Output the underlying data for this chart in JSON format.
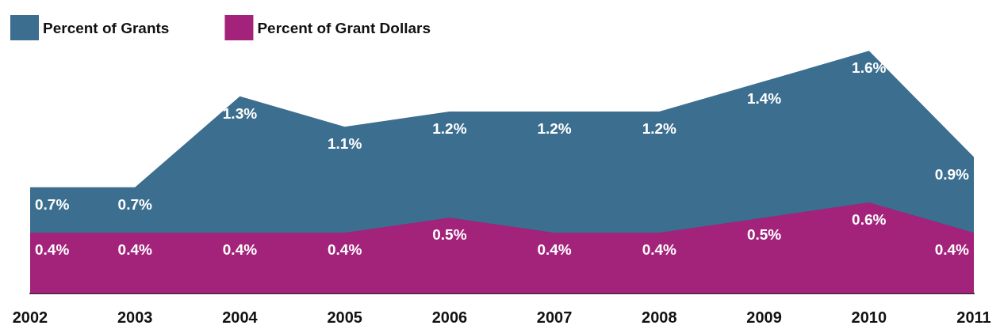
{
  "chart_data": {
    "type": "area",
    "categories": [
      "2002",
      "2003",
      "2004",
      "2005",
      "2006",
      "2007",
      "2008",
      "2009",
      "2010",
      "2011"
    ],
    "series": [
      {
        "name": "Percent of Grants",
        "color": "#3b6e8f",
        "values": [
          0.7,
          0.7,
          1.3,
          1.1,
          1.2,
          1.2,
          1.2,
          1.4,
          1.6,
          0.9
        ],
        "value_labels": [
          "0.7%",
          "0.7%",
          "1.3%",
          "1.1%",
          "1.2%",
          "1.2%",
          "1.2%",
          "1.4%",
          "1.6%",
          "0.9%"
        ]
      },
      {
        "name": "Percent of Grant Dollars",
        "color": "#a3237b",
        "values": [
          0.4,
          0.4,
          0.4,
          0.4,
          0.5,
          0.4,
          0.4,
          0.5,
          0.6,
          0.4
        ],
        "value_labels": [
          "0.4%",
          "0.4%",
          "0.4%",
          "0.4%",
          "0.5%",
          "0.4%",
          "0.4%",
          "0.5%",
          "0.6%",
          "0.4%"
        ]
      }
    ],
    "legend": "top left",
    "grid": false
  }
}
